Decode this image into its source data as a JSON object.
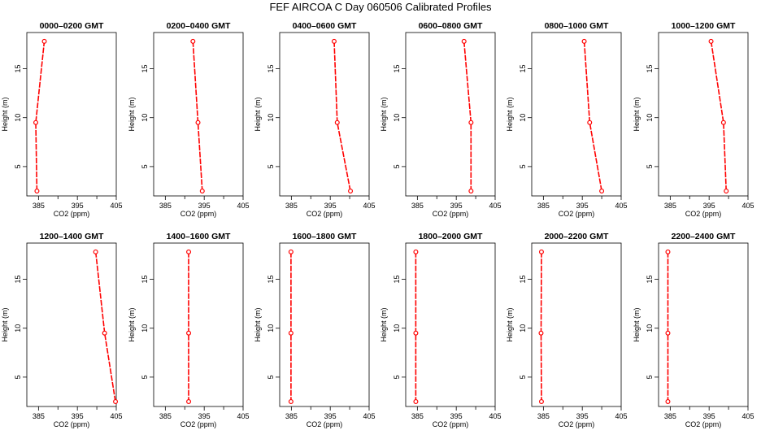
{
  "figure": {
    "title": "FEF AIRCOA C  Day 060506  Calibrated Profiles",
    "colors": {
      "axis": "#000000",
      "series": "#ff0000"
    }
  },
  "chart_data": [
    {
      "type": "line",
      "title": "0000–0200 GMT",
      "xlabel": "CO2 (ppm)",
      "ylabel": "Height (m)",
      "xlim": [
        382,
        405
      ],
      "ylim": [
        2,
        18.7
      ],
      "xticks": [
        385,
        395,
        405
      ],
      "yticks": [
        5,
        10,
        15
      ],
      "series": [
        {
          "x": [
            384.6,
            384.3,
            386.5
          ],
          "y": [
            2.5,
            9.5,
            17.8
          ]
        }
      ]
    },
    {
      "type": "line",
      "title": "0200–0400 GMT",
      "xlabel": "CO2 (ppm)",
      "ylabel": "Height (m)",
      "xlim": [
        382,
        405
      ],
      "ylim": [
        2,
        18.7
      ],
      "xticks": [
        385,
        395,
        405
      ],
      "yticks": [
        5,
        10,
        15
      ],
      "series": [
        {
          "x": [
            392.1,
            393.4,
            394.5
          ],
          "y": [
            17.8,
            9.5,
            2.5
          ]
        }
      ]
    },
    {
      "type": "line",
      "title": "0400–0600 GMT",
      "xlabel": "CO2 (ppm)",
      "ylabel": "Height (m)",
      "xlim": [
        382,
        405
      ],
      "ylim": [
        2,
        18.7
      ],
      "xticks": [
        385,
        395,
        405
      ],
      "yticks": [
        5,
        10,
        15
      ],
      "series": [
        {
          "x": [
            396.0,
            396.8,
            400.2
          ],
          "y": [
            17.8,
            9.5,
            2.5
          ]
        }
      ]
    },
    {
      "type": "line",
      "title": "0600–0800 GMT",
      "xlabel": "CO2 (ppm)",
      "ylabel": "Height (m)",
      "xlim": [
        382,
        405
      ],
      "ylim": [
        2,
        18.7
      ],
      "xticks": [
        385,
        395,
        405
      ],
      "yticks": [
        5,
        10,
        15
      ],
      "series": [
        {
          "x": [
            397.0,
            398.8,
            398.8
          ],
          "y": [
            17.8,
            9.5,
            2.5
          ]
        }
      ]
    },
    {
      "type": "line",
      "title": "0800–1000 GMT",
      "xlabel": "CO2 (ppm)",
      "ylabel": "Height (m)",
      "xlim": [
        382,
        405
      ],
      "ylim": [
        2,
        18.7
      ],
      "xticks": [
        385,
        395,
        405
      ],
      "yticks": [
        5,
        10,
        15
      ],
      "series": [
        {
          "x": [
            395.5,
            396.9,
            400.0
          ],
          "y": [
            17.8,
            9.5,
            2.5
          ]
        }
      ]
    },
    {
      "type": "line",
      "title": "1000–1200 GMT",
      "xlabel": "CO2 (ppm)",
      "ylabel": "Height (m)",
      "xlim": [
        382,
        405
      ],
      "ylim": [
        2,
        18.7
      ],
      "xticks": [
        385,
        395,
        405
      ],
      "yticks": [
        5,
        10,
        15
      ],
      "series": [
        {
          "x": [
            395.5,
            398.7,
            399.4
          ],
          "y": [
            17.8,
            9.5,
            2.5
          ]
        }
      ]
    },
    {
      "type": "line",
      "title": "1200–1400 GMT",
      "xlabel": "CO2 (ppm)",
      "ylabel": "Height (m)",
      "xlim": [
        382,
        405
      ],
      "ylim": [
        2,
        18.7
      ],
      "xticks": [
        385,
        395,
        405
      ],
      "yticks": [
        5,
        10,
        15
      ],
      "series": [
        {
          "x": [
            399.7,
            402.0,
            404.8
          ],
          "y": [
            17.8,
            9.5,
            2.5
          ]
        }
      ]
    },
    {
      "type": "line",
      "title": "1400–1600 GMT",
      "xlabel": "CO2 (ppm)",
      "ylabel": "Height (m)",
      "xlim": [
        382,
        405
      ],
      "ylim": [
        2,
        18.7
      ],
      "xticks": [
        385,
        395,
        405
      ],
      "yticks": [
        5,
        10,
        15
      ],
      "series": [
        {
          "x": [
            391.0,
            391.0,
            391.0
          ],
          "y": [
            17.8,
            9.5,
            2.5
          ]
        }
      ]
    },
    {
      "type": "line",
      "title": "1600–1800 GMT",
      "xlabel": "CO2 (ppm)",
      "ylabel": "Height (m)",
      "xlim": [
        382,
        405
      ],
      "ylim": [
        2,
        18.7
      ],
      "xticks": [
        385,
        395,
        405
      ],
      "yticks": [
        5,
        10,
        15
      ],
      "series": [
        {
          "x": [
            384.9,
            384.9,
            384.9
          ],
          "y": [
            17.8,
            9.5,
            2.5
          ]
        }
      ]
    },
    {
      "type": "line",
      "title": "1800–2000 GMT",
      "xlabel": "CO2 (ppm)",
      "ylabel": "Height (m)",
      "xlim": [
        382,
        405
      ],
      "ylim": [
        2,
        18.7
      ],
      "xticks": [
        385,
        395,
        405
      ],
      "yticks": [
        5,
        10,
        15
      ],
      "series": [
        {
          "x": [
            384.6,
            384.6,
            384.6
          ],
          "y": [
            17.8,
            9.5,
            2.5
          ]
        }
      ]
    },
    {
      "type": "line",
      "title": "2000–2200 GMT",
      "xlabel": "CO2 (ppm)",
      "ylabel": "Height (m)",
      "xlim": [
        382,
        405
      ],
      "ylim": [
        2,
        18.7
      ],
      "xticks": [
        385,
        395,
        405
      ],
      "yticks": [
        5,
        10,
        15
      ],
      "series": [
        {
          "x": [
            384.5,
            384.4,
            384.5
          ],
          "y": [
            17.8,
            9.5,
            2.5
          ]
        }
      ]
    },
    {
      "type": "line",
      "title": "2200–2400 GMT",
      "xlabel": "CO2 (ppm)",
      "ylabel": "Height (m)",
      "xlim": [
        382,
        405
      ],
      "ylim": [
        2,
        18.7
      ],
      "xticks": [
        385,
        395,
        405
      ],
      "yticks": [
        5,
        10,
        15
      ],
      "series": [
        {
          "x": [
            384.4,
            384.4,
            384.4
          ],
          "y": [
            17.8,
            9.5,
            2.5
          ]
        }
      ]
    }
  ]
}
